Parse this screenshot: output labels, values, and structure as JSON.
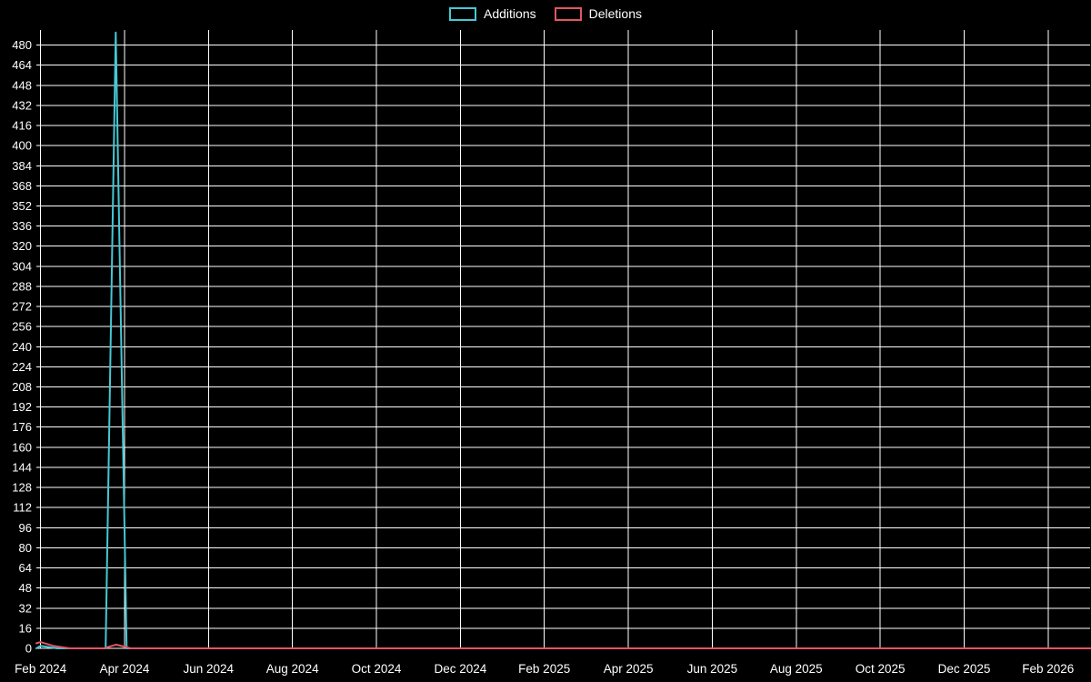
{
  "page": {
    "background": "#000000",
    "text_color": "#ffffff"
  },
  "chart_data": {
    "type": "line",
    "title": "",
    "xlabel": "",
    "ylabel": "",
    "grid": true,
    "grid_color": "#ffffff",
    "background": "#000000",
    "text_color": "#ffffff",
    "legend_position": "top-center",
    "x_tick_labels": [
      "Feb 2024",
      "Apr 2024",
      "Jun 2024",
      "Aug 2024",
      "Oct 2024",
      "Dec 2024",
      "Feb 2025",
      "Apr 2025",
      "Jun 2025",
      "Aug 2025",
      "Oct 2025",
      "Dec 2025",
      "Feb 2026"
    ],
    "x_tick_positions_months": [
      0,
      2,
      4,
      6,
      8,
      10,
      12,
      14,
      16,
      18,
      20,
      22,
      24
    ],
    "xlim_months": [
      -0.1,
      25.0
    ],
    "y_ticks": [
      0,
      16,
      32,
      48,
      64,
      80,
      96,
      112,
      128,
      144,
      160,
      176,
      192,
      208,
      224,
      240,
      256,
      272,
      288,
      304,
      320,
      336,
      352,
      368,
      384,
      400,
      416,
      432,
      448,
      464,
      480
    ],
    "ylim": [
      0,
      492
    ],
    "series": [
      {
        "name": "Additions",
        "color": "#45c8d5",
        "points": [
          [
            -0.1,
            0
          ],
          [
            0,
            2
          ],
          [
            0.4,
            0
          ],
          [
            1.55,
            0
          ],
          [
            1.79,
            490
          ],
          [
            2.05,
            0
          ],
          [
            25,
            0
          ]
        ]
      },
      {
        "name": "Deletions",
        "color": "#e25563",
        "points": [
          [
            -0.1,
            4
          ],
          [
            0,
            5
          ],
          [
            0.3,
            2
          ],
          [
            0.7,
            0
          ],
          [
            1.5,
            0
          ],
          [
            1.8,
            3
          ],
          [
            2.15,
            0
          ],
          [
            25,
            0
          ]
        ]
      }
    ]
  }
}
